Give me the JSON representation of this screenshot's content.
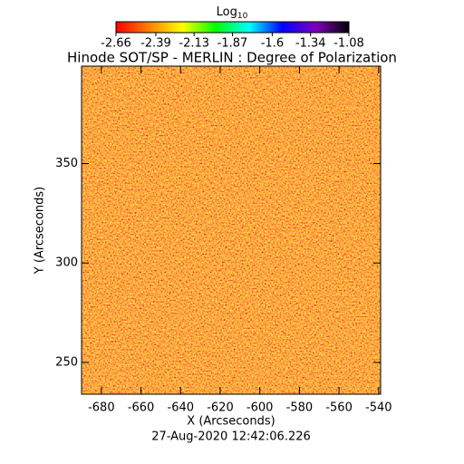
{
  "chart_data": {
    "type": "heatmap",
    "title": "Hinode SOT/SP - MERLIN : Degree of Polarization",
    "subtitle": "27-Aug-2020 12:42:06.226",
    "x_label": "X (Arcseconds)",
    "y_label": "Y (Arcseconds)",
    "xlim": [
      -690,
      -539
    ],
    "xticks": [
      -680,
      -660,
      -640,
      -620,
      -600,
      -580,
      -560,
      -540
    ],
    "ylim": [
      234,
      399
    ],
    "yticks": [
      250,
      300,
      350
    ],
    "colorbar": {
      "label": "Log",
      "label_subscript": "10",
      "lim": [
        -2.66,
        -1.08
      ],
      "ticks": [
        -2.66,
        -2.39,
        -2.13,
        -1.87,
        -1.6,
        -1.34,
        -1.08
      ],
      "colors": [
        "#ff0000",
        "#ff8000",
        "#ffff00",
        "#00ff00",
        "#00ffff",
        "#0000ff",
        "#8000c0",
        "#000000"
      ]
    }
  }
}
